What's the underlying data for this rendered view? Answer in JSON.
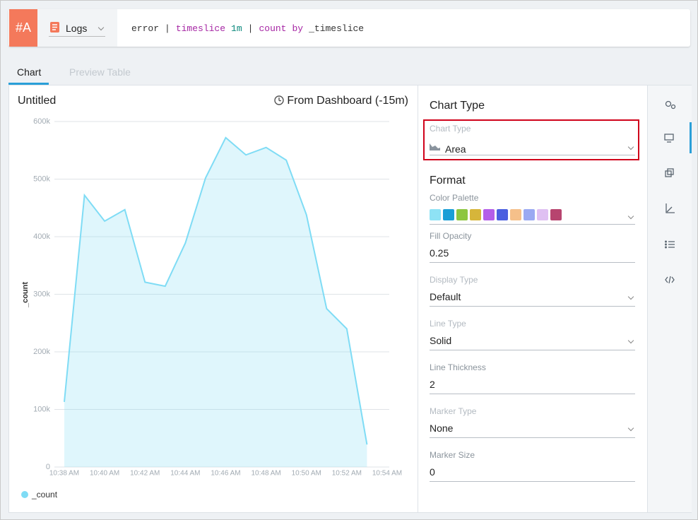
{
  "query": {
    "id": "#A",
    "source": "Logs",
    "tokens": [
      {
        "text": "error",
        "color": "#333333"
      },
      {
        "text": "|",
        "color": "#333333"
      },
      {
        "text": "timeslice",
        "color": "#a626a4"
      },
      {
        "text": "1m",
        "color": "#0e8a7e"
      },
      {
        "text": "|",
        "color": "#333333"
      },
      {
        "text": "count",
        "color": "#a626a4"
      },
      {
        "text": "by",
        "color": "#a626a4"
      },
      {
        "text": "_timeslice",
        "color": "#333333"
      }
    ]
  },
  "tabs": [
    "Chart",
    "Preview Table"
  ],
  "chart_data": {
    "type": "area",
    "title": "Untitled",
    "time_range": "From Dashboard (-15m)",
    "y_label": "_count",
    "categories": [
      "10:38 AM",
      null,
      "10:40 AM",
      null,
      "10:42 AM",
      null,
      "10:44 AM",
      null,
      "10:46 AM",
      null,
      "10:48 AM",
      null,
      "10:50 AM",
      null,
      "10:52 AM",
      null,
      "10:54 AM"
    ],
    "series": [
      {
        "name": "_count",
        "color": "#7fdcf5",
        "values": [
          113000,
          472000,
          427000,
          447000,
          321000,
          314000,
          389000,
          502000,
          572000,
          542000,
          555000,
          533000,
          438000,
          275000,
          240000,
          39000,
          null
        ]
      }
    ],
    "ylim": [
      0,
      600000
    ],
    "yticks": [
      0,
      {
        "value": 100000,
        "label": "100k"
      },
      {
        "value": 200000,
        "label": "200k"
      },
      {
        "value": 300000,
        "label": "300k"
      },
      {
        "value": 400000,
        "label": "400k"
      },
      {
        "value": 500000,
        "label": "500k"
      },
      {
        "value": 600000,
        "label": "600k"
      }
    ],
    "grid": true
  },
  "settings": {
    "heading": "Chart Type",
    "chart_type": {
      "label": "Chart Type",
      "value": "Area"
    },
    "format_heading": "Format",
    "color_palette": {
      "label": "Color Palette",
      "colors": [
        "#8ee2f5",
        "#1a9fd6",
        "#8dc63f",
        "#d6b53a",
        "#b45ee8",
        "#4a5fe0",
        "#f5c08a",
        "#9aa9f2",
        "#dfc0f2",
        "#b7446f"
      ]
    },
    "fields": [
      {
        "label": "Fill Opacity",
        "value": 0.25,
        "dropdown": false
      },
      {
        "label": "Display Type",
        "value": "Default",
        "dropdown": true
      },
      {
        "label": "Line Type",
        "value": "Solid",
        "dropdown": true
      },
      {
        "label": "Line Thickness",
        "value": 2,
        "dropdown": false
      },
      {
        "label": "Marker Type",
        "value": "None",
        "dropdown": true
      },
      {
        "label": "Marker Size",
        "value": 0,
        "dropdown": false
      }
    ]
  }
}
